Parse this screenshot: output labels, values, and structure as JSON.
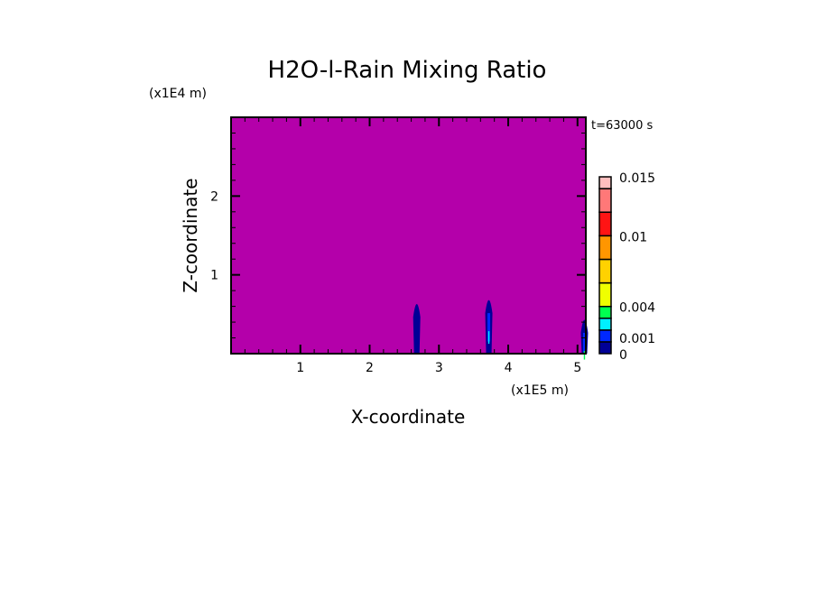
{
  "chart_data": {
    "type": "heatmap",
    "title": "H2O-l-Rain Mixing Ratio",
    "xlabel": "X-coordinate",
    "ylabel": "Z-coordinate",
    "x_unit_label": "(x1E5 m)",
    "y_unit_label": "(x1E4 m)",
    "time_label": "t=63000 s",
    "xlim": [
      0,
      5.12
    ],
    "ylim": [
      0,
      3
    ],
    "x_ticks": [
      1,
      2,
      3,
      4,
      5
    ],
    "x_tick_labels": [
      "1",
      "2",
      "3",
      "4",
      "5"
    ],
    "y_ticks": [
      1,
      2
    ],
    "y_tick_labels": [
      "1",
      "2"
    ],
    "minor_tick_step": 0.2,
    "background_color": "#b400aa",
    "plumes": [
      {
        "x": 2.68,
        "z_top": 0.75,
        "max_value": 0.001
      },
      {
        "x": 3.72,
        "z_top": 0.8,
        "max_value": 0.003
      },
      {
        "x": 5.1,
        "z_top": 0.55,
        "max_value": 0.004
      }
    ],
    "colorbar": {
      "levels": [
        0,
        0.001,
        0.002,
        0.003,
        0.004,
        0.006,
        0.008,
        0.01,
        0.012,
        0.014,
        0.015
      ],
      "colors": [
        "#000096",
        "#0028ff",
        "#00f0ff",
        "#00ff50",
        "#f0ff00",
        "#ffd200",
        "#ff9600",
        "#ff1414",
        "#ff7878",
        "#ffbebe"
      ],
      "tick_values": [
        0,
        0.001,
        0.004,
        0.01,
        0.015
      ],
      "tick_labels": [
        "0",
        "0.001",
        "0.004",
        "0.01",
        "0.015"
      ]
    }
  }
}
